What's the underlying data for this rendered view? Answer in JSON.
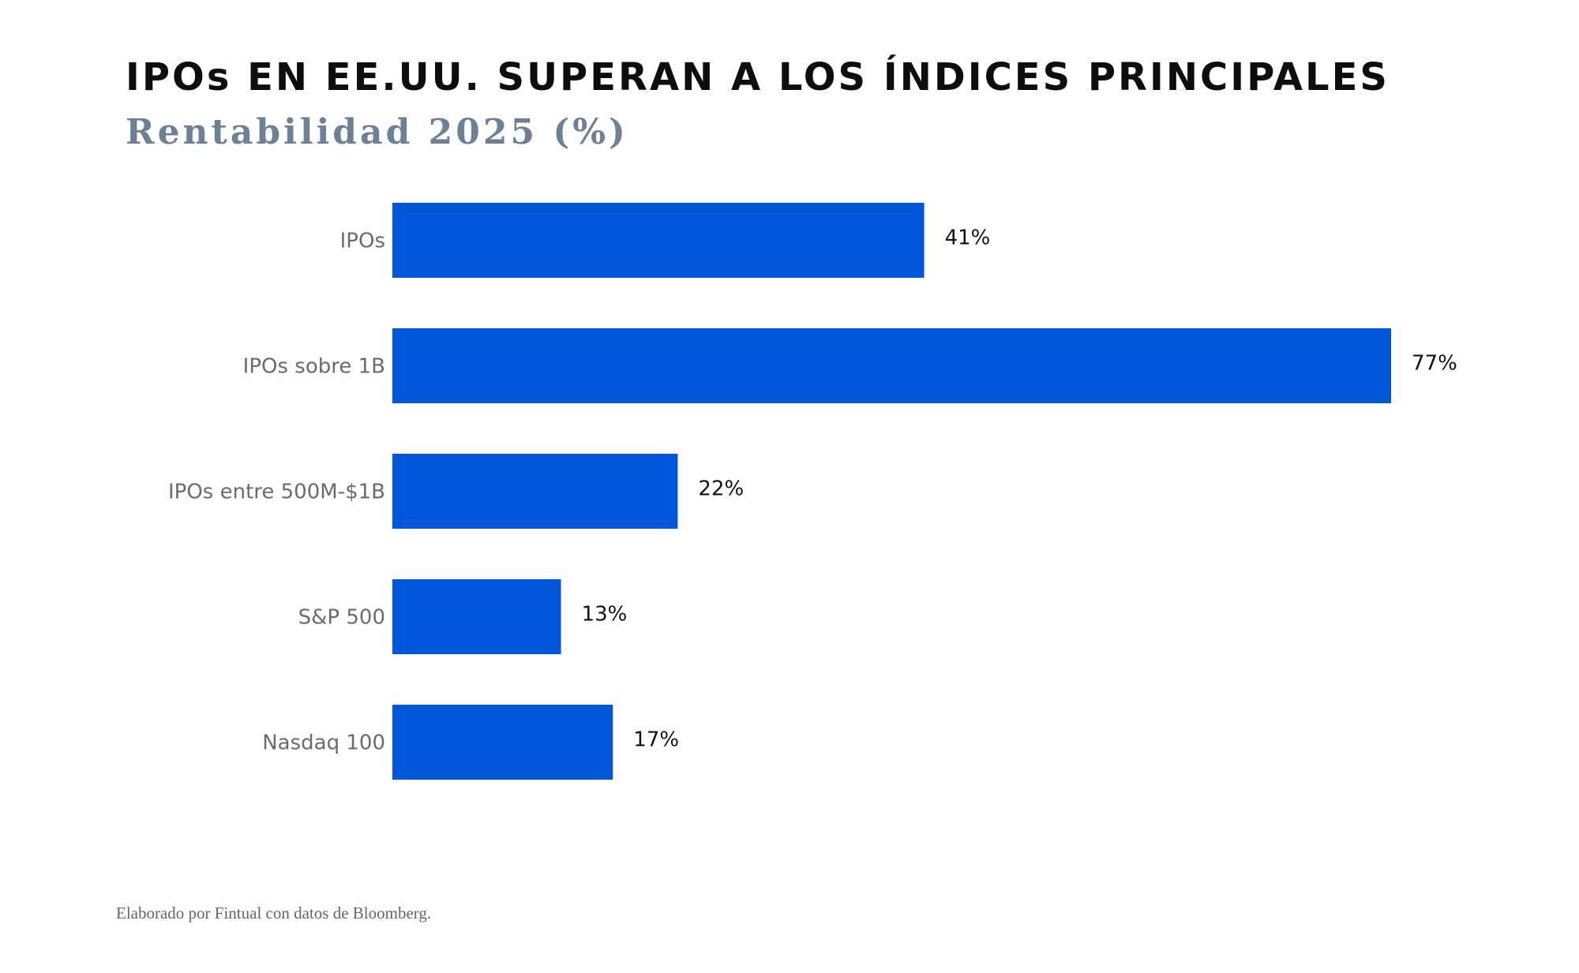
{
  "title": "IPOs EN EE.UU. SUPERAN A LOS ÍNDICES PRINCIPALES",
  "subtitle": "Rentabilidad 2025 (%)",
  "source": "Elaborado por Fintual con datos de Bloomberg.",
  "colors": {
    "bar": "#0057d9",
    "title": "#0d0d0d",
    "subtitle": "#6e8096"
  },
  "chart_data": {
    "type": "bar",
    "orientation": "horizontal",
    "categories": [
      "IPOs",
      "IPOs sobre 1B",
      "IPOs entre 500M-$1B",
      "S&P 500",
      "Nasdaq 100"
    ],
    "values": [
      41,
      77,
      22,
      13,
      17
    ],
    "value_labels": [
      "41%",
      "77%",
      "22%",
      "13%",
      "17%"
    ],
    "title": "IPOs EN EE.UU. SUPERAN A LOS ÍNDICES PRINCIPALES",
    "subtitle": "Rentabilidad 2025 (%)",
    "xlabel": "",
    "ylabel": "",
    "xlim": [
      0,
      77
    ],
    "grid": false,
    "legend": "none"
  }
}
